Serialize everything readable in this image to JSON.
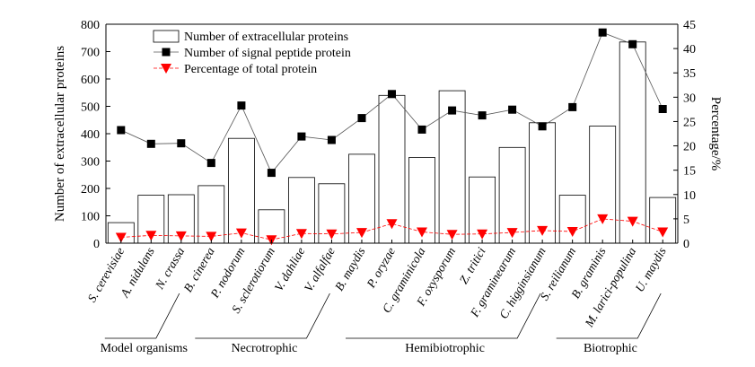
{
  "chart_data": {
    "type": "bar",
    "categories": [
      "S. cerevisiae",
      "A. nidulans",
      "N. crassa",
      "B. cinerea",
      "P. nodorum",
      "S. sclerotiorum",
      "V. dahliae",
      "V. alfalfae",
      "B. maydis",
      "P. oryzae",
      "C. graminicola",
      "F. oxysporum",
      "Z. tritici",
      "F. graminearum",
      "C. higginsianum",
      "S. reilianum",
      "B. graminis",
      "M. larici-populina",
      "U. maydis"
    ],
    "series": [
      {
        "name": "Number of extracellular proteins",
        "type": "bar",
        "axis": "left",
        "color": "#ffffff",
        "values": [
          75,
          175,
          177,
          210,
          383,
          122,
          240,
          217,
          325,
          540,
          313,
          557,
          242,
          350,
          440,
          175,
          428,
          735,
          167
        ]
      },
      {
        "name": "Number of signal peptide protein",
        "type": "line",
        "axis": "left",
        "color": "#000000",
        "marker": "square",
        "values": [
          413,
          363,
          365,
          293,
          503,
          257,
          390,
          377,
          457,
          545,
          415,
          485,
          467,
          488,
          427,
          497,
          770,
          727,
          490
        ]
      },
      {
        "name": "Percentage of total protein",
        "type": "line",
        "axis": "right",
        "color": "#ff0000",
        "marker": "triangle-down",
        "values": [
          1.2,
          1.6,
          1.5,
          1.4,
          2.1,
          0.7,
          2.0,
          1.9,
          2.2,
          4.0,
          2.3,
          1.8,
          1.9,
          2.2,
          2.6,
          2.4,
          5.0,
          4.5,
          2.3
        ]
      }
    ],
    "ylabel": "Number of extracellular proteins",
    "y2label": "Percentage/%",
    "ylim": [
      0,
      800
    ],
    "y2lim": [
      0,
      45
    ],
    "yticks": [
      "0",
      "100",
      "200",
      "300",
      "400",
      "500",
      "600",
      "700",
      "800"
    ],
    "y2ticks": [
      "0",
      "5",
      "10",
      "15",
      "20",
      "25",
      "30",
      "35",
      "40",
      "45"
    ],
    "legend_position": "top-left",
    "grid": false,
    "groups": [
      {
        "label": "Model organisms",
        "from": 0,
        "to": 2
      },
      {
        "label": "Necrotrophic",
        "from": 3,
        "to": 7
      },
      {
        "label": "Hemibiotrophic",
        "from": 8,
        "to": 14
      },
      {
        "label": "Biotrophic",
        "from": 15,
        "to": 18
      }
    ]
  }
}
